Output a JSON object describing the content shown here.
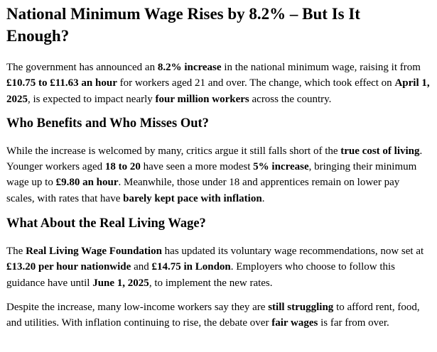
{
  "article": {
    "title": "National Minimum Wage Rises by 8.2% – But Is It Enough?",
    "paragraphs": [
      [
        {
          "t": "The government has announced an "
        },
        {
          "t": "8.2% increase",
          "b": true
        },
        {
          "t": " in the national minimum wage, raising it from "
        },
        {
          "t": "£10.75 to £11.63 an hour",
          "b": true
        },
        {
          "t": " for workers aged 21 and over. The change, which took effect on "
        },
        {
          "t": "April 1, 2025",
          "b": true
        },
        {
          "t": ", is expected to impact nearly "
        },
        {
          "t": "four million workers",
          "b": true
        },
        {
          "t": " across the country."
        }
      ]
    ],
    "section1": {
      "heading": "Who Benefits and Who Misses Out?",
      "paragraph": [
        {
          "t": "While the increase is welcomed by many, critics argue it still falls short of the "
        },
        {
          "t": "true cost of living",
          "b": true
        },
        {
          "t": ". Younger workers aged "
        },
        {
          "t": "18 to 20",
          "b": true
        },
        {
          "t": " have seen a more modest "
        },
        {
          "t": "5% increase",
          "b": true
        },
        {
          "t": ", bringing their minimum wage up to "
        },
        {
          "t": "£9.80 an hour",
          "b": true
        },
        {
          "t": ". Meanwhile, those under 18 and apprentices remain on lower pay scales, with rates that have "
        },
        {
          "t": "barely kept pace with inflation",
          "b": true
        },
        {
          "t": "."
        }
      ]
    },
    "section2": {
      "heading": "What About the Real Living Wage?",
      "paragraph1": [
        {
          "t": "The "
        },
        {
          "t": "Real Living Wage Foundation",
          "b": true
        },
        {
          "t": " has updated its voluntary wage recommendations, now set at "
        },
        {
          "t": "£13.20 per hour nationwide",
          "b": true
        },
        {
          "t": " and "
        },
        {
          "t": "£14.75 in London",
          "b": true
        },
        {
          "t": ". Employers who choose to follow this guidance have until "
        },
        {
          "t": "June 1, 2025",
          "b": true
        },
        {
          "t": ", to implement the new rates."
        }
      ],
      "paragraph2": [
        {
          "t": "Despite the increase, many low-income workers say they are "
        },
        {
          "t": "still struggling",
          "b": true
        },
        {
          "t": " to afford rent, food, and utilities. With inflation continuing to rise, the debate over "
        },
        {
          "t": "fair wages",
          "b": true
        },
        {
          "t": " is far from over."
        }
      ]
    }
  }
}
